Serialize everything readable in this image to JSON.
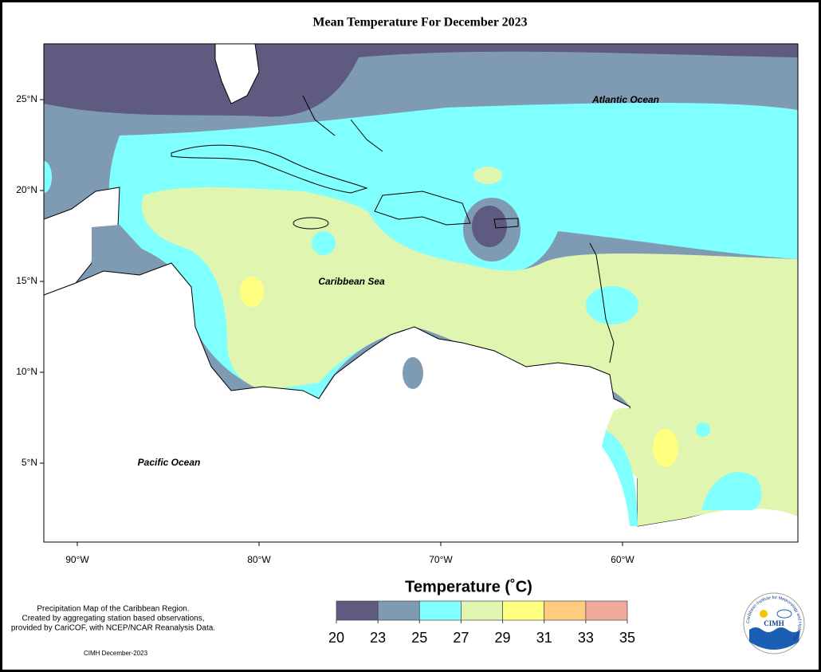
{
  "header": {
    "title": "Mean Temperature For December 2023"
  },
  "map": {
    "lat_ticks": [
      {
        "value": 25,
        "label": "25°N"
      },
      {
        "value": 20,
        "label": "20°N"
      },
      {
        "value": 15,
        "label": "15°N"
      },
      {
        "value": 10,
        "label": "10°N"
      },
      {
        "value": 5,
        "label": "5°N"
      }
    ],
    "lon_ticks": [
      {
        "value": -90,
        "label": "90°W"
      },
      {
        "value": -80,
        "label": "80°W"
      },
      {
        "value": -70,
        "label": "70°W"
      },
      {
        "value": -60,
        "label": "60°W"
      }
    ],
    "labels": [
      "Atlantic Ocean",
      "Caribbean Sea",
      "Pacific Ocean"
    ]
  },
  "legend": {
    "title": "Temperature (˚C)",
    "ticks": [
      20,
      23,
      25,
      27,
      29,
      31,
      33,
      35
    ],
    "colors": [
      "#5e5a80",
      "#7f9bb3",
      "#80ffff",
      "#e0f5b0",
      "#ffff80",
      "#ffcc80",
      "#f0aa9a"
    ]
  },
  "notes": [
    "Precipitation Map of the Caribbean Region.",
    "Created by aggregating station based observations,",
    "provided by CariCOF, with NCEP/NCAR Reanalysis Data."
  ],
  "footer": "CIMH December-2023",
  "logo": {
    "label": "CIMH",
    "ring": "Caribbean Institute for Meteorology and Hydrology"
  }
}
